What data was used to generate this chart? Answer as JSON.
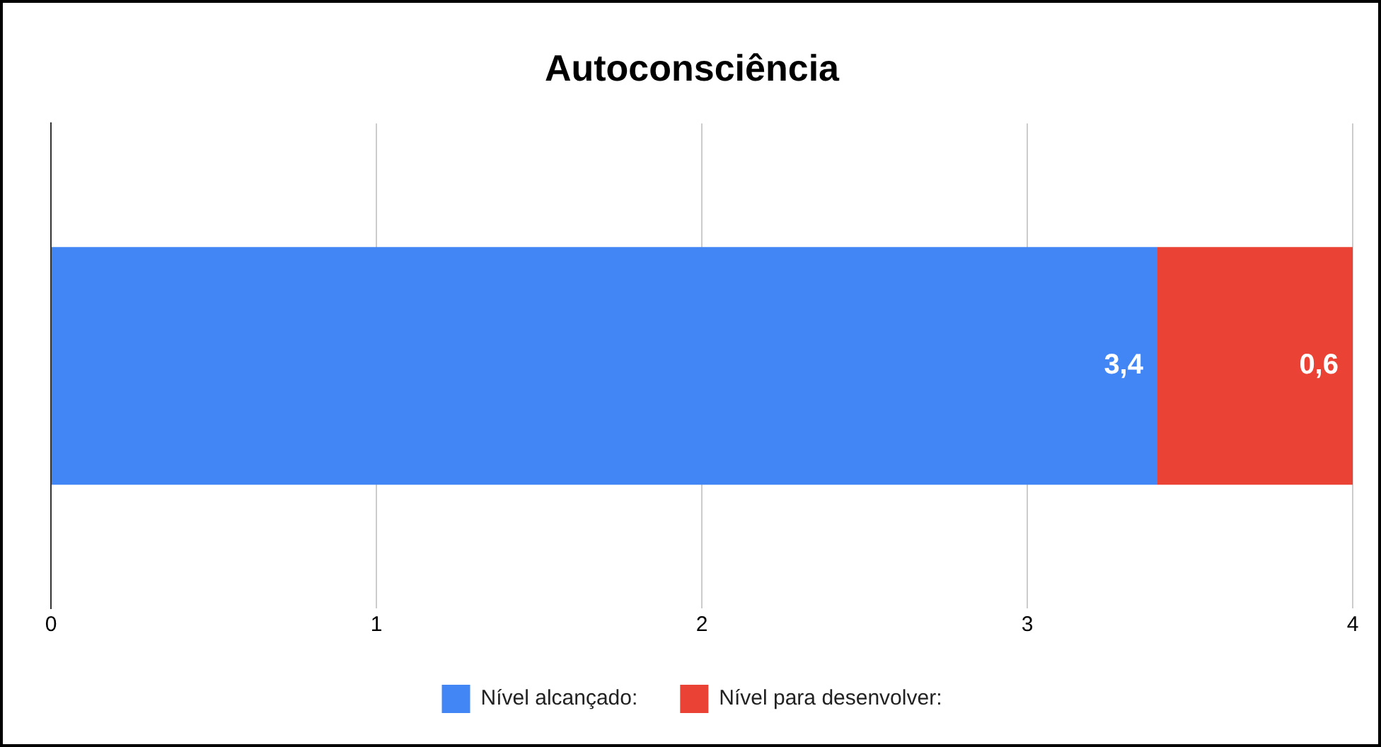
{
  "chart_data": {
    "type": "bar",
    "orientation": "horizontal",
    "stacked": true,
    "title": "Autoconsciência",
    "categories": [
      null
    ],
    "series": [
      {
        "name": "Nível alcançado:",
        "color": "#4285f4",
        "values": [
          3.4
        ],
        "value_labels": [
          "3,4"
        ]
      },
      {
        "name": "Nível para desenvolver:",
        "color": "#ea4335",
        "values": [
          0.6
        ],
        "value_labels": [
          "0,6"
        ]
      }
    ],
    "xlim": [
      0,
      4
    ],
    "xticks": [
      0,
      1,
      2,
      3,
      4
    ],
    "grid": "x",
    "legend": "bottom"
  }
}
